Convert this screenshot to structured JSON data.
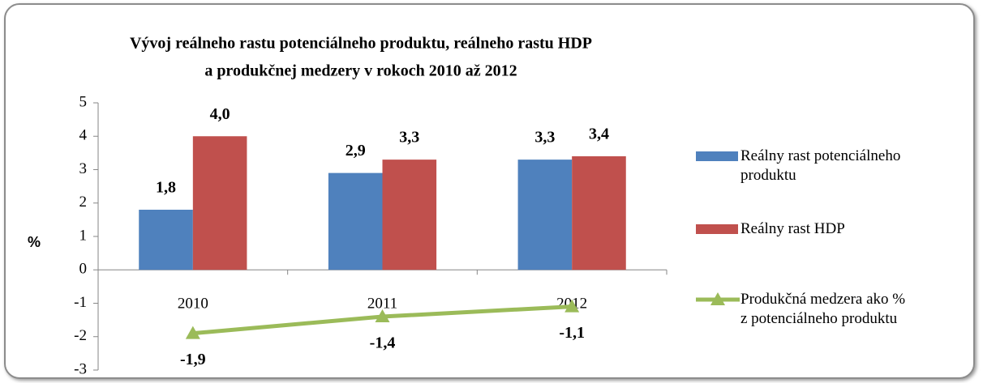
{
  "chart_data": {
    "type": "bar_line",
    "title": [
      "Vývoj  reálneho rastu potenciálneho produktu, reálneho rastu HDP",
      "a produkčnej medzery v rokoch 2010 až 2012"
    ],
    "y_label": "%",
    "categories": [
      "2010",
      "2011",
      "2012"
    ],
    "series": [
      {
        "name": "Reálny rast potenciálneho produktu",
        "type": "bar",
        "color": "#4f81bd",
        "values": [
          1.8,
          2.9,
          3.3
        ],
        "value_labels": [
          "1,8",
          "2,9",
          "3,3"
        ]
      },
      {
        "name": "Reálny rast HDP",
        "type": "bar",
        "color": "#c0504d",
        "values": [
          4.0,
          3.3,
          3.4
        ],
        "value_labels": [
          "4,0",
          "3,3",
          "3,4"
        ]
      },
      {
        "name": "Produkčná medzera ako % z potenciálneho produktu",
        "type": "line",
        "color": "#9bbb59",
        "values": [
          -1.9,
          -1.4,
          -1.1
        ],
        "value_labels": [
          "-1,9",
          "-1,4",
          "-1,1"
        ]
      }
    ],
    "ylim": [
      -3,
      5
    ],
    "yticks": [
      -3,
      -2,
      -1,
      0,
      1,
      2,
      3,
      4,
      5
    ],
    "grid": false,
    "legend": "right"
  }
}
